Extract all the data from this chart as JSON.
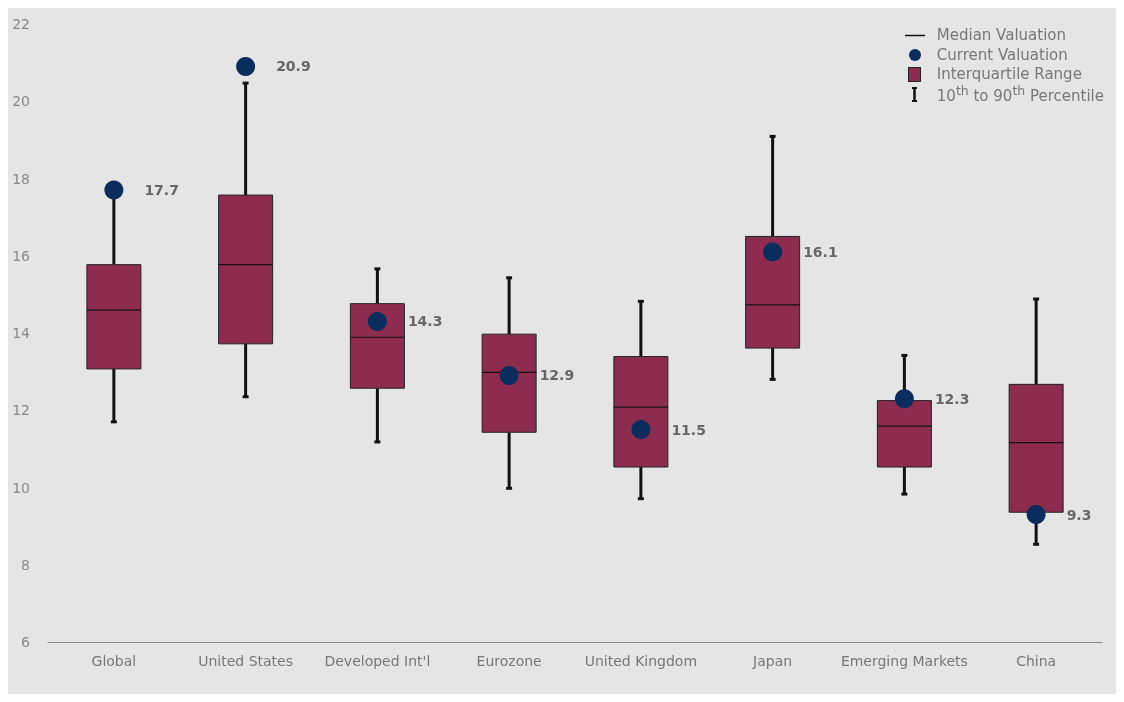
{
  "chart_data": {
    "type": "box",
    "categories": [
      "Global",
      "United States",
      "Developed Int'l",
      "Eurozone",
      "United Kingdom",
      "Japan",
      "Emerging Markets",
      "China"
    ],
    "series": [
      {
        "name": "Interquartile Range",
        "color": "#8e2c50",
        "boxes": [
          {
            "low": 11.7,
            "q1": 13.07,
            "median": 14.59,
            "q3": 15.77,
            "high": 17.6
          },
          {
            "low": 12.35,
            "q1": 13.72,
            "median": 15.77,
            "q3": 17.57,
            "high": 20.47
          },
          {
            "low": 11.18,
            "q1": 12.57,
            "median": 13.89,
            "q3": 14.76,
            "high": 15.66
          },
          {
            "low": 9.98,
            "q1": 11.43,
            "median": 12.98,
            "q3": 13.97,
            "high": 15.43
          },
          {
            "low": 9.71,
            "q1": 10.53,
            "median": 12.08,
            "q3": 13.39,
            "high": 14.82
          },
          {
            "low": 12.8,
            "q1": 13.61,
            "median": 14.73,
            "q3": 16.5,
            "high": 19.09
          },
          {
            "low": 9.83,
            "q1": 10.53,
            "median": 11.59,
            "q3": 12.25,
            "high": 13.42
          },
          {
            "low": 8.53,
            "q1": 9.36,
            "median": 11.16,
            "q3": 12.67,
            "high": 14.88
          }
        ]
      },
      {
        "type": "scatter",
        "name": "Current Valuation",
        "color": "#0a2d5e",
        "x": [
          "Global",
          "United States",
          "Developed Int'l",
          "Eurozone",
          "United Kingdom",
          "Japan",
          "Emerging Markets",
          "China"
        ],
        "values": [
          17.7,
          20.9,
          14.3,
          12.9,
          11.5,
          16.1,
          12.3,
          9.3
        ]
      }
    ],
    "annotations": [
      "Median Valuation",
      "10$^{th}$ to 90$^{th}$ Percentile"
    ],
    "data_labels": true,
    "ylim": [
      6,
      22
    ],
    "yticks": [
      6,
      8,
      10,
      12,
      14,
      16,
      18,
      20,
      22
    ],
    "grid": false,
    "legend": "top right",
    "marker": "circle"
  }
}
